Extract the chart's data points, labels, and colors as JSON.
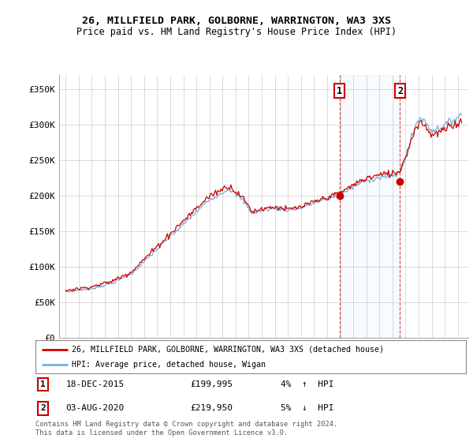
{
  "title": "26, MILLFIELD PARK, GOLBORNE, WARRINGTON, WA3 3XS",
  "subtitle": "Price paid vs. HM Land Registry's House Price Index (HPI)",
  "ylim": [
    0,
    370000
  ],
  "yticks": [
    0,
    50000,
    100000,
    150000,
    200000,
    250000,
    300000,
    350000
  ],
  "ytick_labels": [
    "£0",
    "£50K",
    "£100K",
    "£150K",
    "£200K",
    "£250K",
    "£300K",
    "£350K"
  ],
  "sale1_date": 2015.96,
  "sale1_price": 199995,
  "sale2_date": 2020.58,
  "sale2_price": 219950,
  "legend_line1": "26, MILLFIELD PARK, GOLBORNE, WARRINGTON, WA3 3XS (detached house)",
  "legend_line2": "HPI: Average price, detached house, Wigan",
  "footer": "Contains HM Land Registry data © Crown copyright and database right 2024.\nThis data is licensed under the Open Government Licence v3.0.",
  "line_color_red": "#cc0000",
  "line_color_blue": "#7aadda",
  "grid_color": "#cccccc",
  "background_color": "#ffffff",
  "sale_box_color": "#cc0000",
  "xlim_left": 1994.5,
  "xlim_right": 2025.8
}
